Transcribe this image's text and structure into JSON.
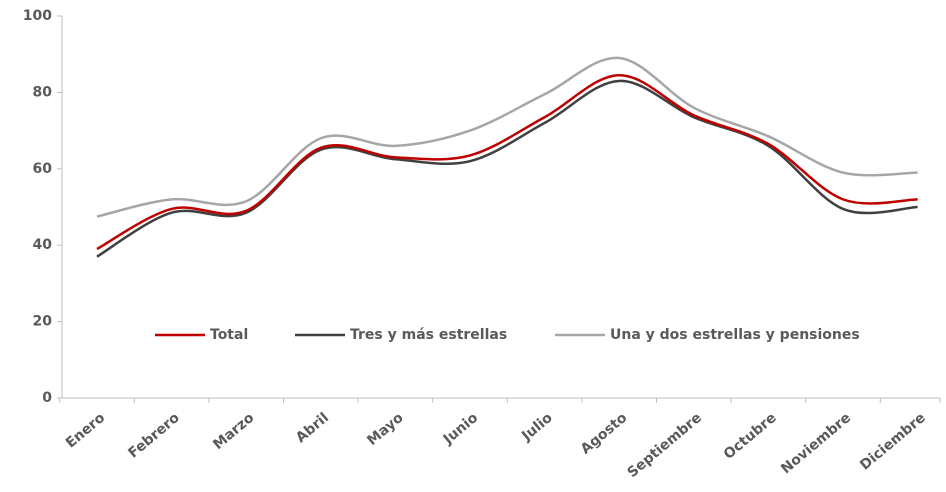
{
  "chart_data": {
    "type": "line",
    "categories": [
      "Enero",
      "Febrero",
      "Marzo",
      "Abril",
      "Mayo",
      "Junio",
      "Julio",
      "Agosto",
      "Septiembre",
      "Octubre",
      "Noviembre",
      "Diciembre"
    ],
    "series": [
      {
        "name": "Total",
        "color": "#c00000",
        "values": [
          39,
          49.5,
          49,
          65.5,
          63,
          63.5,
          73.5,
          84.5,
          74,
          66.5,
          52,
          52
        ]
      },
      {
        "name": "Tres y más estrellas",
        "color": "#404040",
        "values": [
          37,
          48.5,
          48.5,
          65,
          62.5,
          62,
          72,
          83,
          73.5,
          66,
          49.5,
          50
        ]
      },
      {
        "name": "Una y dos estrellas y pensiones",
        "color": "#a6a6a6",
        "values": [
          47.5,
          52,
          51.5,
          68,
          66,
          70,
          79.5,
          89,
          76,
          68.5,
          59,
          59
        ]
      }
    ],
    "ylim": [
      0,
      100
    ],
    "yticks": [
      0,
      20,
      40,
      60,
      80,
      100
    ],
    "grid": false
  }
}
